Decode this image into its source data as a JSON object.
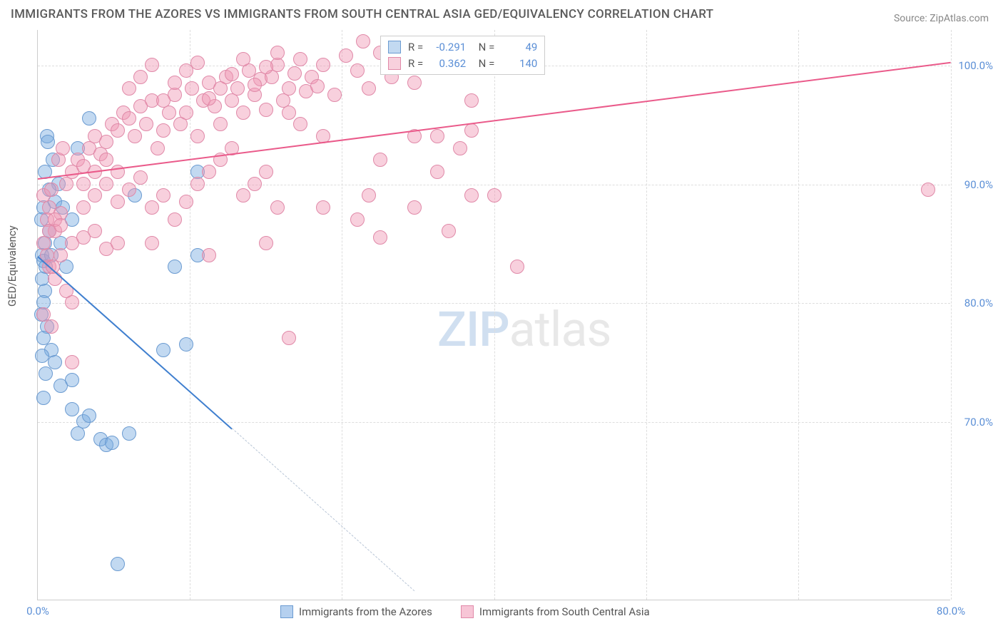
{
  "title": "IMMIGRANTS FROM THE AZORES VS IMMIGRANTS FROM SOUTH CENTRAL ASIA GED/EQUIVALENCY CORRELATION CHART",
  "source": "Source: ZipAtlas.com",
  "ylabel": "GED/Equivalency",
  "watermark_zip": "ZIP",
  "watermark_atlas": "atlas",
  "chart": {
    "type": "scatter",
    "xlim": [
      0,
      80
    ],
    "ylim": [
      55,
      103
    ],
    "grid_color": "#dddddd",
    "background_color": "#ffffff",
    "y_ticks": [
      70,
      80,
      90,
      100
    ],
    "y_tick_labels": [
      "70.0%",
      "80.0%",
      "90.0%",
      "100.0%"
    ],
    "x_ticks": [
      0,
      80
    ],
    "x_tick_labels": [
      "0.0%",
      "80.0%"
    ],
    "x_grid_positions": [
      0,
      13.3,
      26.6,
      40,
      53.3,
      66.6,
      80
    ],
    "series": [
      {
        "name": "Immigrants from the Azores",
        "fill_color": "rgba(120,170,225,0.45)",
        "stroke_color": "#6b9bd1",
        "line_color": "#3f7fcf",
        "R": "-0.291",
        "N": "49",
        "trend": {
          "x1": 0,
          "y1": 84,
          "x2": 17,
          "y2": 69.5,
          "dash_x2": 33,
          "dash_y2": 55.8
        },
        "points": [
          [
            0.5,
            88
          ],
          [
            0.3,
            87
          ],
          [
            0.6,
            85
          ],
          [
            0.4,
            84
          ],
          [
            0.5,
            83.5
          ],
          [
            0.7,
            83
          ],
          [
            0.4,
            82
          ],
          [
            0.6,
            81
          ],
          [
            0.5,
            80
          ],
          [
            0.3,
            79
          ],
          [
            0.8,
            78
          ],
          [
            0.5,
            77
          ],
          [
            1.2,
            76
          ],
          [
            0.4,
            75.5
          ],
          [
            1.5,
            75
          ],
          [
            0.7,
            74
          ],
          [
            2,
            73
          ],
          [
            3,
            73.5
          ],
          [
            0.5,
            72
          ],
          [
            1.8,
            90
          ],
          [
            1,
            89.5
          ],
          [
            1.5,
            88.5
          ],
          [
            2.2,
            88
          ],
          [
            3,
            87
          ],
          [
            3.5,
            93
          ],
          [
            0.8,
            94
          ],
          [
            4.5,
            95.5
          ],
          [
            1.2,
            84
          ],
          [
            2.5,
            83
          ],
          [
            8.5,
            89
          ],
          [
            12,
            83
          ],
          [
            14,
            91
          ],
          [
            3,
            71
          ],
          [
            4,
            70
          ],
          [
            5.5,
            68.5
          ],
          [
            6,
            68
          ],
          [
            8,
            69
          ],
          [
            4.5,
            70.5
          ],
          [
            6.5,
            68.2
          ],
          [
            3.5,
            69
          ],
          [
            11,
            76
          ],
          [
            13,
            76.5
          ],
          [
            14,
            84
          ],
          [
            1,
            86
          ],
          [
            2,
            85
          ],
          [
            0.6,
            91
          ],
          [
            1.3,
            92
          ],
          [
            0.9,
            93.5
          ],
          [
            7,
            58
          ]
        ]
      },
      {
        "name": "Immigrants from South Central Asia",
        "fill_color": "rgba(240,150,180,0.45)",
        "stroke_color": "#e089a8",
        "line_color": "#ea5a8a",
        "R": "0.362",
        "N": "140",
        "trend": {
          "x1": 0,
          "y1": 90.5,
          "x2": 80,
          "y2": 100.3
        },
        "points": [
          [
            0.5,
            89
          ],
          [
            1,
            88
          ],
          [
            0.8,
            87
          ],
          [
            1.5,
            86
          ],
          [
            2,
            87.5
          ],
          [
            1.2,
            89.5
          ],
          [
            2.5,
            90
          ],
          [
            3,
            91
          ],
          [
            1.8,
            92
          ],
          [
            2.2,
            93
          ],
          [
            3.5,
            92
          ],
          [
            4,
            91.5
          ],
          [
            4.5,
            93
          ],
          [
            5,
            94
          ],
          [
            5.5,
            92.5
          ],
          [
            6,
            93.5
          ],
          [
            6.5,
            95
          ],
          [
            7,
            94.5
          ],
          [
            7.5,
            96
          ],
          [
            8,
            95.5
          ],
          [
            8.5,
            94
          ],
          [
            9,
            96.5
          ],
          [
            9.5,
            95
          ],
          [
            10,
            97
          ],
          [
            10.5,
            93
          ],
          [
            11,
            94.5
          ],
          [
            11.5,
            96
          ],
          [
            12,
            97.5
          ],
          [
            12.5,
            95
          ],
          [
            13,
            96
          ],
          [
            13.5,
            98
          ],
          [
            14,
            94
          ],
          [
            14.5,
            97
          ],
          [
            15,
            98.5
          ],
          [
            15.5,
            96.5
          ],
          [
            16,
            95
          ],
          [
            16.5,
            99
          ],
          [
            17,
            97
          ],
          [
            17.5,
            98
          ],
          [
            18,
            96
          ],
          [
            18.5,
            99.5
          ],
          [
            19,
            97.5
          ],
          [
            19.5,
            98.8
          ],
          [
            20,
            96.2
          ],
          [
            20.5,
            99
          ],
          [
            21,
            100
          ],
          [
            21.5,
            97
          ],
          [
            22,
            98
          ],
          [
            22.5,
            99.3
          ],
          [
            23,
            100.5
          ],
          [
            23.5,
            97.8
          ],
          [
            24,
            99
          ],
          [
            24.5,
            98.2
          ],
          [
            25,
            100
          ],
          [
            26,
            97.5
          ],
          [
            27,
            100.8
          ],
          [
            28,
            99.5
          ],
          [
            28.5,
            102
          ],
          [
            29,
            98
          ],
          [
            30,
            101
          ],
          [
            31,
            99
          ],
          [
            31.5,
            101.5
          ],
          [
            33,
            98.5
          ],
          [
            2,
            84
          ],
          [
            3,
            85
          ],
          [
            4,
            85.5
          ],
          [
            5,
            86
          ],
          [
            6,
            84.5
          ],
          [
            7,
            85
          ],
          [
            1,
            83
          ],
          [
            1.5,
            82
          ],
          [
            2.5,
            81
          ],
          [
            3,
            80
          ],
          [
            0.5,
            79
          ],
          [
            1.2,
            78
          ],
          [
            4,
            88
          ],
          [
            5,
            89
          ],
          [
            6,
            90
          ],
          [
            7,
            88.5
          ],
          [
            8,
            89.5
          ],
          [
            9,
            90.5
          ],
          [
            10,
            88
          ],
          [
            11,
            89
          ],
          [
            12,
            87
          ],
          [
            13,
            88.5
          ],
          [
            14,
            90
          ],
          [
            15,
            91
          ],
          [
            16,
            92
          ],
          [
            17,
            93
          ],
          [
            18,
            89
          ],
          [
            19,
            90
          ],
          [
            20,
            91
          ],
          [
            21,
            88
          ],
          [
            8,
            98
          ],
          [
            9,
            99
          ],
          [
            10,
            100
          ],
          [
            11,
            97
          ],
          [
            12,
            98.5
          ],
          [
            13,
            99.5
          ],
          [
            14,
            100.2
          ],
          [
            15,
            97.2
          ],
          [
            16,
            98
          ],
          [
            17,
            99.2
          ],
          [
            18,
            100.5
          ],
          [
            19,
            98.3
          ],
          [
            20,
            99.8
          ],
          [
            21,
            101
          ],
          [
            22,
            96
          ],
          [
            23,
            95
          ],
          [
            25,
            88
          ],
          [
            28,
            87
          ],
          [
            29,
            89
          ],
          [
            33,
            88
          ],
          [
            37,
            93
          ],
          [
            38,
            94.5
          ],
          [
            40,
            89
          ],
          [
            42,
            83
          ],
          [
            39,
            100
          ],
          [
            22,
            77
          ],
          [
            30,
            85.5
          ],
          [
            35,
            91
          ],
          [
            36,
            86
          ],
          [
            3,
            75
          ],
          [
            38,
            89
          ],
          [
            33,
            94
          ],
          [
            10,
            85
          ],
          [
            15,
            84
          ],
          [
            20,
            85
          ],
          [
            25,
            94
          ],
          [
            30,
            92
          ],
          [
            35,
            94
          ],
          [
            38,
            97
          ],
          [
            78,
            89.5
          ],
          [
            0.5,
            85
          ],
          [
            1,
            86
          ],
          [
            1.5,
            87
          ],
          [
            2,
            86.5
          ],
          [
            0.8,
            84
          ],
          [
            1.3,
            83
          ],
          [
            4,
            90
          ],
          [
            5,
            91
          ],
          [
            6,
            92
          ],
          [
            7,
            91
          ]
        ]
      }
    ]
  },
  "bottom_legend": [
    {
      "color_fill": "rgba(120,170,225,0.55)",
      "color_stroke": "#6b9bd1",
      "label": "Immigrants from the Azores"
    },
    {
      "color_fill": "rgba(240,150,180,0.55)",
      "color_stroke": "#e089a8",
      "label": "Immigrants from South Central Asia"
    }
  ]
}
